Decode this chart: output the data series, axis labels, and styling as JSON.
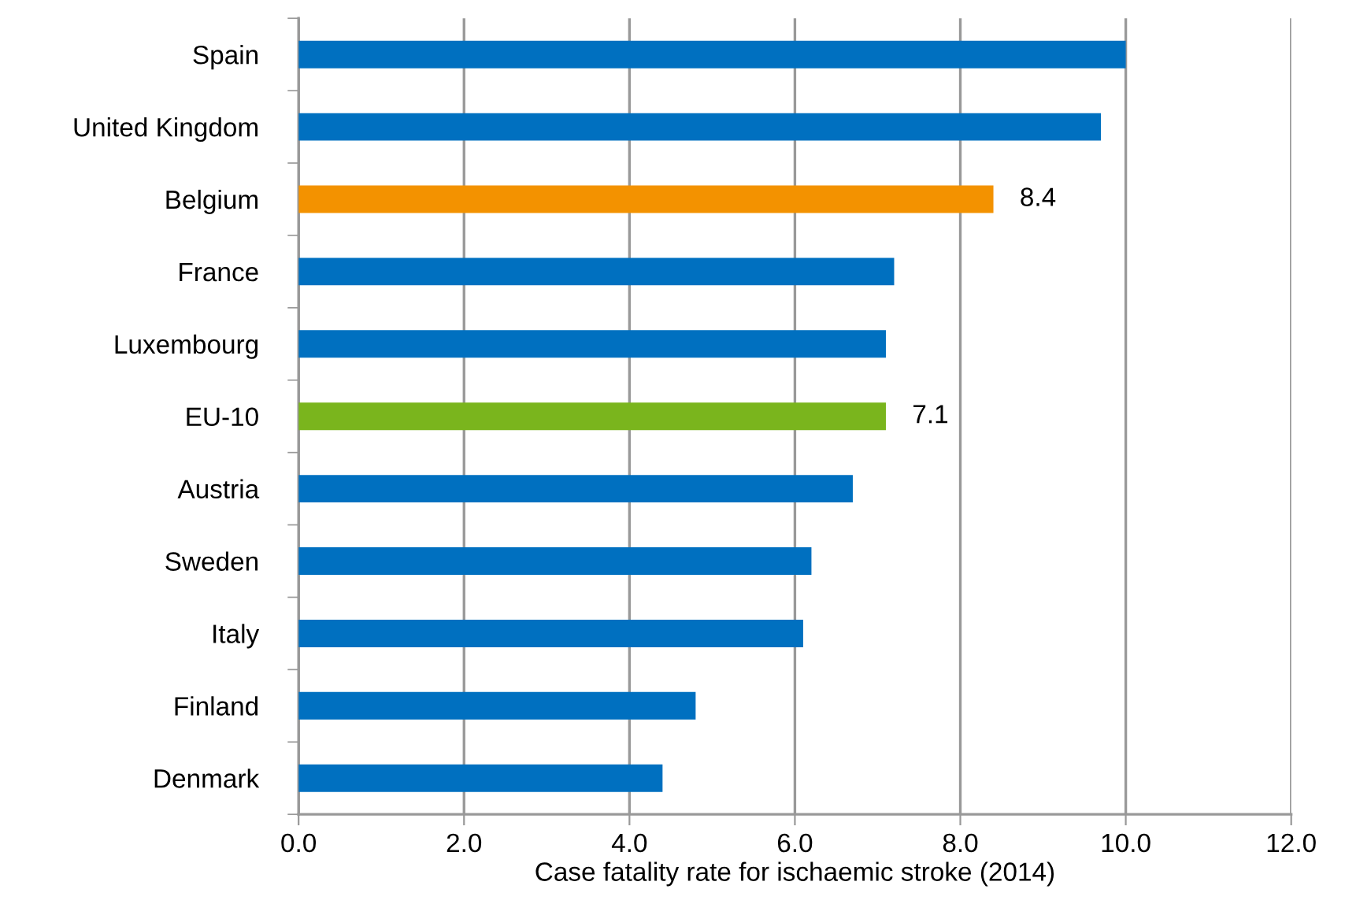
{
  "chart_data": {
    "type": "bar",
    "orientation": "horizontal",
    "xlabel": "Case fatality rate for ischaemic stroke (2014)",
    "categories": [
      "Spain",
      "United Kingdom",
      "Belgium",
      "France",
      "Luxembourg",
      "EU-10",
      "Austria",
      "Sweden",
      "Italy",
      "Finland",
      "Denmark"
    ],
    "values": [
      10.0,
      9.7,
      8.4,
      7.2,
      7.1,
      7.1,
      6.7,
      6.2,
      6.1,
      4.8,
      4.4
    ],
    "colors": [
      "#0070c0",
      "#0070c0",
      "#f39200",
      "#0070c0",
      "#0070c0",
      "#7ab51d",
      "#0070c0",
      "#0070c0",
      "#0070c0",
      "#0070c0",
      "#0070c0"
    ],
    "value_labels": [
      null,
      null,
      "8.4",
      null,
      null,
      "7.1",
      null,
      null,
      null,
      null,
      null
    ],
    "xlim": [
      0,
      12
    ],
    "xticks": [
      {
        "value": 0,
        "label": "0.0"
      },
      {
        "value": 2,
        "label": "2.0"
      },
      {
        "value": 4,
        "label": "4.0"
      },
      {
        "value": 6,
        "label": "6.0"
      },
      {
        "value": 8,
        "label": "8.0"
      },
      {
        "value": 10,
        "label": "10.0"
      },
      {
        "value": 12,
        "label": "12.0"
      }
    ],
    "grid": "x"
  }
}
